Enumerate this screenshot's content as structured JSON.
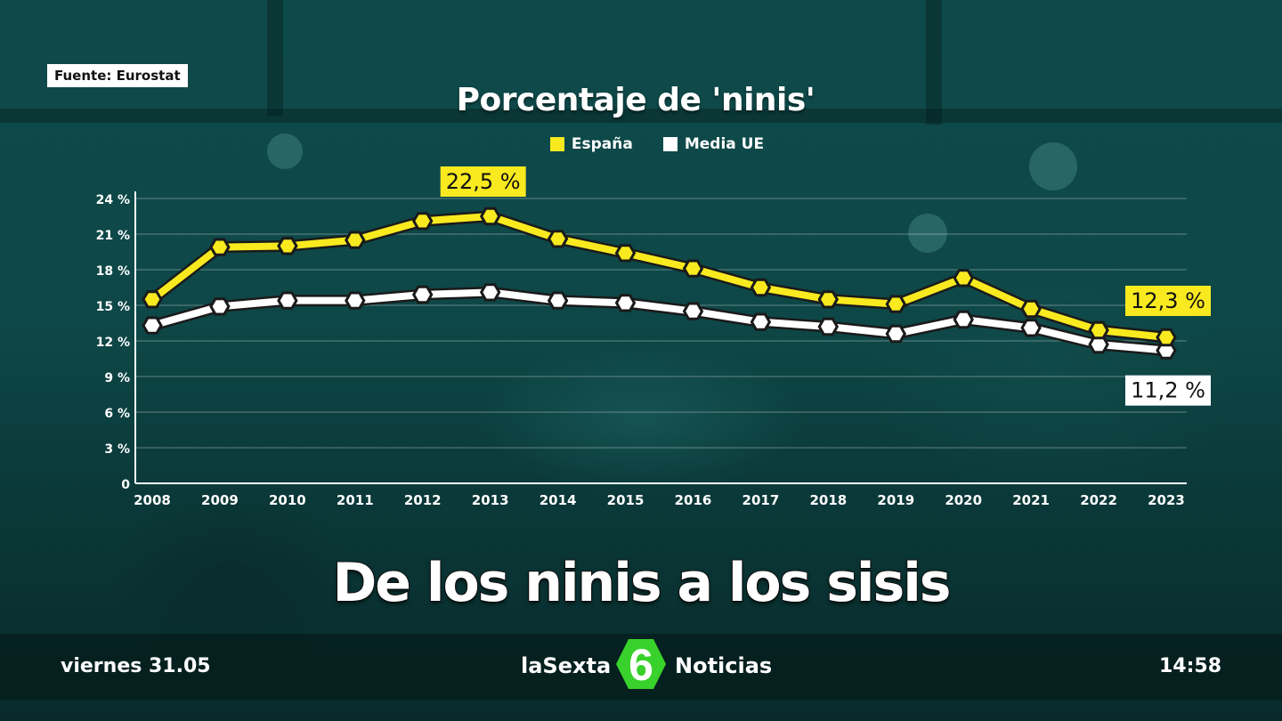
{
  "source_label": "Fuente: Eurostat",
  "headline": "De los ninis a los sisis",
  "footer": {
    "date": "viernes 31.05",
    "brand_left": "laSexta",
    "brand_logo_text": "6",
    "brand_right": "Noticias",
    "time": "14:58"
  },
  "colors": {
    "espana": "#f8ea1f",
    "media_ue": "#ffffff",
    "axis": "#ffffff"
  },
  "chart_data": {
    "type": "line",
    "title": "Porcentaje de 'ninis'",
    "xlabel": "",
    "ylabel": "",
    "categories": [
      "2008",
      "2009",
      "2010",
      "2011",
      "2012",
      "2013",
      "2014",
      "2015",
      "2016",
      "2017",
      "2018",
      "2019",
      "2020",
      "2021",
      "2022",
      "2023"
    ],
    "ylim": [
      0,
      24
    ],
    "yticks": [
      "0",
      "3 %",
      "6 %",
      "9 %",
      "12 %",
      "15 %",
      "18 %",
      "21 %",
      "24 %"
    ],
    "grid": true,
    "legend_position": "top-center",
    "series": [
      {
        "name": "España",
        "color": "#f8ea1f",
        "values": [
          15.5,
          19.9,
          20.0,
          20.5,
          22.1,
          22.5,
          20.6,
          19.4,
          18.1,
          16.5,
          15.5,
          15.1,
          17.3,
          14.7,
          12.9,
          12.3
        ]
      },
      {
        "name": "Media UE",
        "color": "#ffffff",
        "values": [
          13.3,
          14.9,
          15.4,
          15.4,
          15.9,
          16.1,
          15.4,
          15.2,
          14.5,
          13.6,
          13.2,
          12.6,
          13.8,
          13.1,
          11.7,
          11.2
        ]
      }
    ],
    "annotations": [
      {
        "text": "22,5 %",
        "series": "España",
        "category": "2013"
      },
      {
        "text": "12,3 %",
        "series": "España",
        "category": "2023"
      },
      {
        "text": "11,2 %",
        "series": "Media UE",
        "category": "2023"
      }
    ]
  }
}
